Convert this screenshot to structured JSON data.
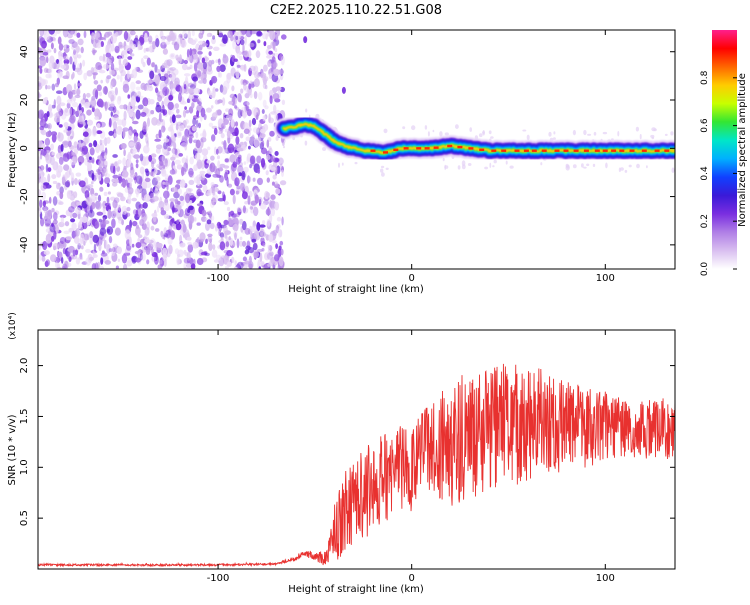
{
  "title": "C2E2.2025.110.22.51.G08",
  "colors": {
    "snr_line": "#e8312f",
    "colormap": [
      "#ffffff",
      "#d9bff0",
      "#b07fe6",
      "#7a2ee0",
      "#3a1ad8",
      "#1040ff",
      "#00b0ff",
      "#00e6c8",
      "#33e633",
      "#c8ff00",
      "#ffcc00",
      "#ff6600",
      "#ff0000",
      "#ff1f8c"
    ]
  },
  "chart_data": [
    {
      "type": "heatmap",
      "title": "C2E2.2025.110.22.51.G08",
      "xlabel": "Height of straight line (km)",
      "ylabel": "Frequency (Hz)",
      "xlim": [
        -193,
        136
      ],
      "ylim": [
        -50,
        49
      ],
      "xticks": [
        -100,
        0,
        100
      ],
      "yticks": [
        -40,
        -20,
        0,
        20,
        40
      ],
      "grid": false,
      "noise_region_x": [
        -193,
        -66
      ],
      "signal_ridge": {
        "x": [
          -66,
          -60,
          -55,
          -50,
          -45,
          -40,
          -35,
          -30,
          -25,
          -20,
          -15,
          -10,
          -5,
          0,
          10,
          20,
          30,
          40,
          60,
          80,
          100,
          120,
          136
        ],
        "frequency": [
          8,
          9,
          10,
          9,
          6,
          3,
          1,
          0,
          -1,
          -1,
          -2,
          -1,
          0,
          0,
          0,
          1,
          0,
          -1,
          -1,
          -1,
          -1,
          -1,
          -1
        ]
      },
      "isolated_blobs": [
        {
          "x": -35,
          "frequency": 24
        },
        {
          "x": -55,
          "frequency": 45
        }
      ],
      "colorbar": {
        "label": "Normalized spectral amplitude",
        "range": [
          0,
          1
        ],
        "ticks": [
          "0.0",
          "0.2",
          "0.4",
          "0.6",
          "0.8"
        ]
      }
    },
    {
      "type": "line",
      "xlabel": "Height of straight line (km)",
      "ylabel": "SNR (10 * v/v)",
      "y_multiplier": "(x10⁴)",
      "xlim": [
        -193,
        136
      ],
      "ylim": [
        0,
        2.35
      ],
      "xticks": [
        -100,
        0,
        100
      ],
      "yticks": [
        "0.5",
        "1.0",
        "1.5",
        "2.0"
      ],
      "grid": false,
      "series": [
        {
          "x": [
            -193,
            -150,
            -100,
            -70,
            -60,
            -55,
            -50,
            -45,
            -42,
            -40,
            -35,
            -30,
            -25,
            -20,
            -15,
            -10,
            -5,
            0,
            5,
            10,
            15,
            20,
            25,
            30,
            35,
            40,
            45,
            50,
            55,
            60,
            65,
            70,
            80,
            90,
            100,
            110,
            120,
            130,
            136
          ],
          "values": [
            0.04,
            0.04,
            0.04,
            0.05,
            0.1,
            0.16,
            0.12,
            0.1,
            0.2,
            0.35,
            0.55,
            0.7,
            0.75,
            0.85,
            0.9,
            0.95,
            1.0,
            0.95,
            1.1,
            1.15,
            1.2,
            1.2,
            1.25,
            1.3,
            1.35,
            1.35,
            1.4,
            1.45,
            1.4,
            1.4,
            1.45,
            1.45,
            1.4,
            1.4,
            1.4,
            1.4,
            1.38,
            1.38,
            1.38
          ],
          "noise_amplitude": [
            0.01,
            0.01,
            0.01,
            0.01,
            0.02,
            0.03,
            0.05,
            0.08,
            0.15,
            0.3,
            0.4,
            0.45,
            0.45,
            0.45,
            0.45,
            0.45,
            0.45,
            0.45,
            0.45,
            0.5,
            0.55,
            0.6,
            0.6,
            0.6,
            0.6,
            0.6,
            0.65,
            0.6,
            0.6,
            0.55,
            0.55,
            0.5,
            0.45,
            0.4,
            0.35,
            0.3,
            0.3,
            0.3,
            0.3
          ]
        }
      ]
    }
  ]
}
